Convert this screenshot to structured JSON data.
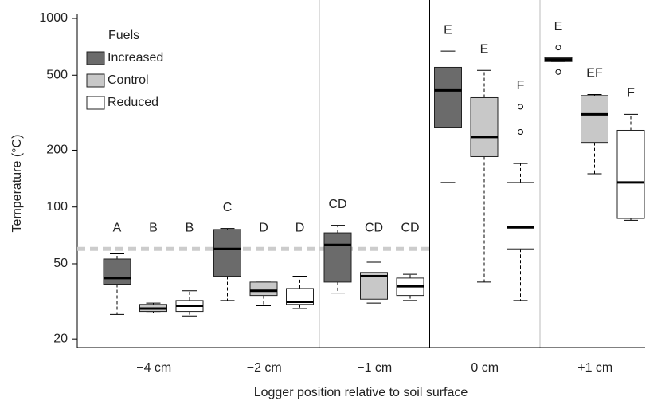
{
  "chart_data": {
    "type": "box",
    "y_label": "Temperature (°C)",
    "x_label": "Logger position relative to soil surface",
    "categories": [
      "−4 cm",
      "−2 cm",
      "−1 cm",
      "0 cm",
      "+1 cm"
    ],
    "log_scale": true,
    "ylim": [
      18,
      1050
    ],
    "yticks": [
      20,
      50,
      100,
      200,
      500,
      1000
    ],
    "reference_line": 60,
    "legend_title": "Fuels",
    "legend_position": "upper left",
    "series": [
      {
        "name": "Increased",
        "color": "#6b6b6b",
        "letters": [
          "A",
          "C",
          "CD",
          "E",
          "E"
        ],
        "boxes": [
          {
            "min": 27,
            "q1": 39,
            "median": 42,
            "q3": 53,
            "max": 57,
            "outliers": []
          },
          {
            "min": 32,
            "q1": 43,
            "median": 60,
            "q3": 76,
            "max": 77,
            "outliers": []
          },
          {
            "min": 35,
            "q1": 40,
            "median": 63,
            "q3": 73,
            "max": 80,
            "outliers": []
          },
          {
            "min": 135,
            "q1": 265,
            "median": 415,
            "q3": 550,
            "max": 670,
            "outliers": []
          },
          {
            "min": 590,
            "q1": 590,
            "median": 605,
            "q3": 620,
            "max": 620,
            "outliers": [
              700,
              520
            ]
          }
        ]
      },
      {
        "name": "Control",
        "color": "#c8c8c8",
        "letters": [
          "B",
          "D",
          "CD",
          "E",
          "EF"
        ],
        "boxes": [
          {
            "min": 27.5,
            "q1": 28,
            "median": 29,
            "q3": 30.5,
            "max": 31,
            "outliers": []
          },
          {
            "min": 30,
            "q1": 34,
            "median": 36,
            "q3": 40,
            "max": 40,
            "outliers": []
          },
          {
            "min": 31,
            "q1": 32.5,
            "median": 43,
            "q3": 45,
            "max": 51,
            "outliers": []
          },
          {
            "min": 40,
            "q1": 185,
            "median": 235,
            "q3": 380,
            "max": 530,
            "outliers": []
          },
          {
            "min": 150,
            "q1": 220,
            "median": 310,
            "q3": 390,
            "max": 395,
            "outliers": []
          }
        ]
      },
      {
        "name": "Reduced",
        "color": "#ffffff",
        "letters": [
          "B",
          "D",
          "CD",
          "F",
          "F"
        ],
        "boxes": [
          {
            "min": 26.5,
            "q1": 28,
            "median": 30,
            "q3": 32,
            "max": 36,
            "outliers": []
          },
          {
            "min": 29,
            "q1": 30.5,
            "median": 31.5,
            "q3": 37,
            "max": 43,
            "outliers": []
          },
          {
            "min": 32,
            "q1": 34,
            "median": 38,
            "q3": 42,
            "max": 44,
            "outliers": []
          },
          {
            "min": 32,
            "q1": 60,
            "median": 78,
            "q3": 135,
            "max": 170,
            "outliers": [
              250,
              340
            ]
          },
          {
            "min": 85,
            "q1": 87,
            "median": 135,
            "q3": 255,
            "max": 310,
            "outliers": []
          }
        ]
      }
    ]
  }
}
